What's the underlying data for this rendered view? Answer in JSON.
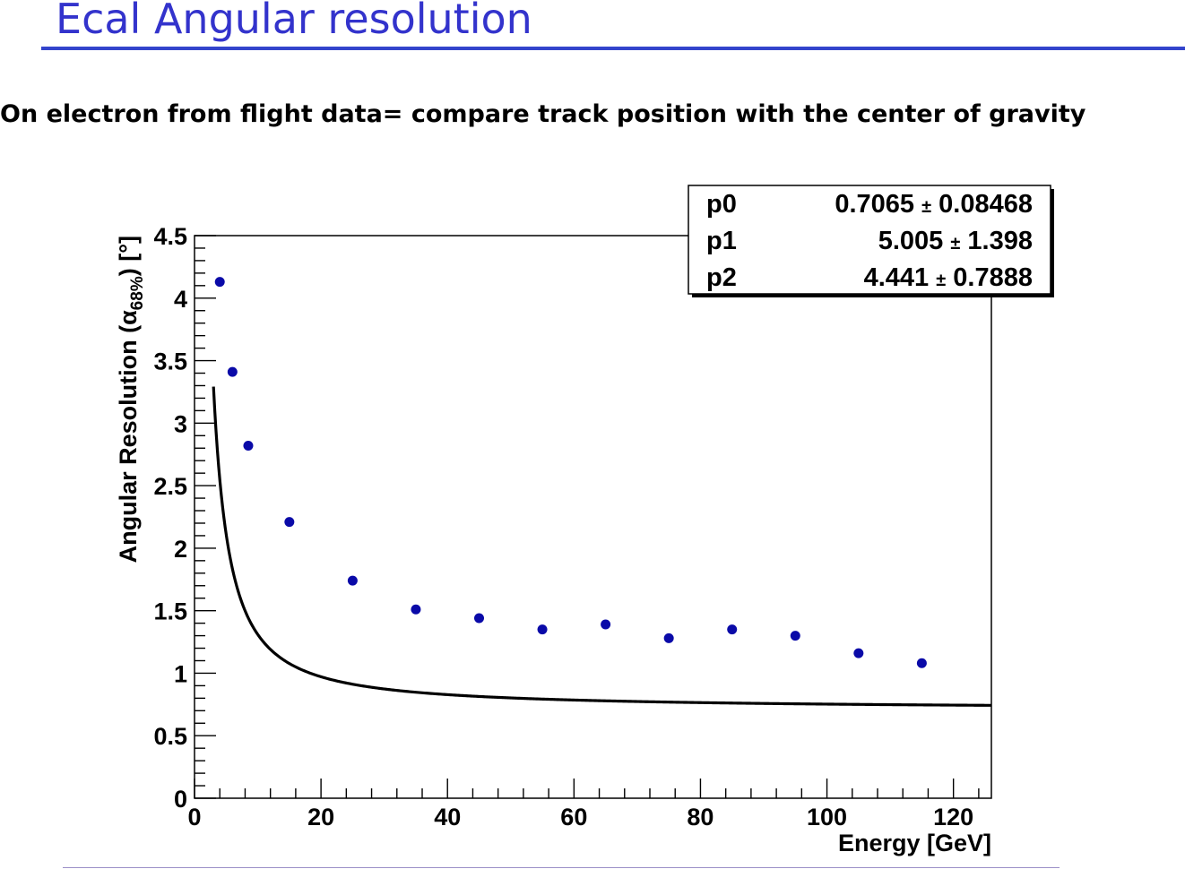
{
  "slide": {
    "title": "Ecal Angular resolution",
    "subtitle": "On electron from flight data= compare track position with the center of gravity"
  },
  "colors": {
    "title": "#3333cc",
    "rule": "#3344cc",
    "marker": "#0a0aa8",
    "fit_line": "#000000"
  },
  "chart_data": {
    "type": "scatter",
    "title": "",
    "xlabel": "Energy [GeV]",
    "ylabel": "Angular Resolution (α68%) [°]",
    "ylabel_parts": {
      "main": "Angular Resolution (α",
      "sub": "68%",
      "tail": ") [°]"
    },
    "xlim": [
      0,
      126
    ],
    "ylim": [
      0,
      4.5
    ],
    "x_ticks": [
      0,
      20,
      40,
      60,
      80,
      100,
      120
    ],
    "x_tick_labels": [
      "0",
      "20",
      "40",
      "60",
      "80",
      "100",
      "120"
    ],
    "y_ticks": [
      0,
      0.5,
      1,
      1.5,
      2,
      2.5,
      3,
      3.5,
      4,
      4.5
    ],
    "y_tick_labels": [
      "0",
      "0.5",
      "1",
      "1.5",
      "2",
      "2.5",
      "3",
      "3.5",
      "4",
      "4.5"
    ],
    "grid": false,
    "legend": "none",
    "series": [
      {
        "x": [
          4,
          6,
          8.5,
          15,
          25,
          35,
          45,
          55,
          65,
          75,
          85,
          95,
          105,
          115
        ],
        "y": [
          4.13,
          3.41,
          2.82,
          2.21,
          1.74,
          1.51,
          1.44,
          1.35,
          1.39,
          1.28,
          1.35,
          1.3,
          1.16,
          1.08
        ]
      }
    ],
    "fit": {
      "x_range": [
        3,
        126
      ],
      "p0": 0.7065,
      "p1": 5.005,
      "p2": 4.441
    },
    "stats_box": {
      "placement": "top-right",
      "rows": [
        {
          "name": "p0",
          "value": "0.7065",
          "pm": "±",
          "error": "0.08468"
        },
        {
          "name": "p1",
          "value": "5.005",
          "pm": "±",
          "error": "1.398"
        },
        {
          "name": "p2",
          "value": "4.441",
          "pm": "±",
          "error": "0.7888"
        }
      ]
    }
  }
}
